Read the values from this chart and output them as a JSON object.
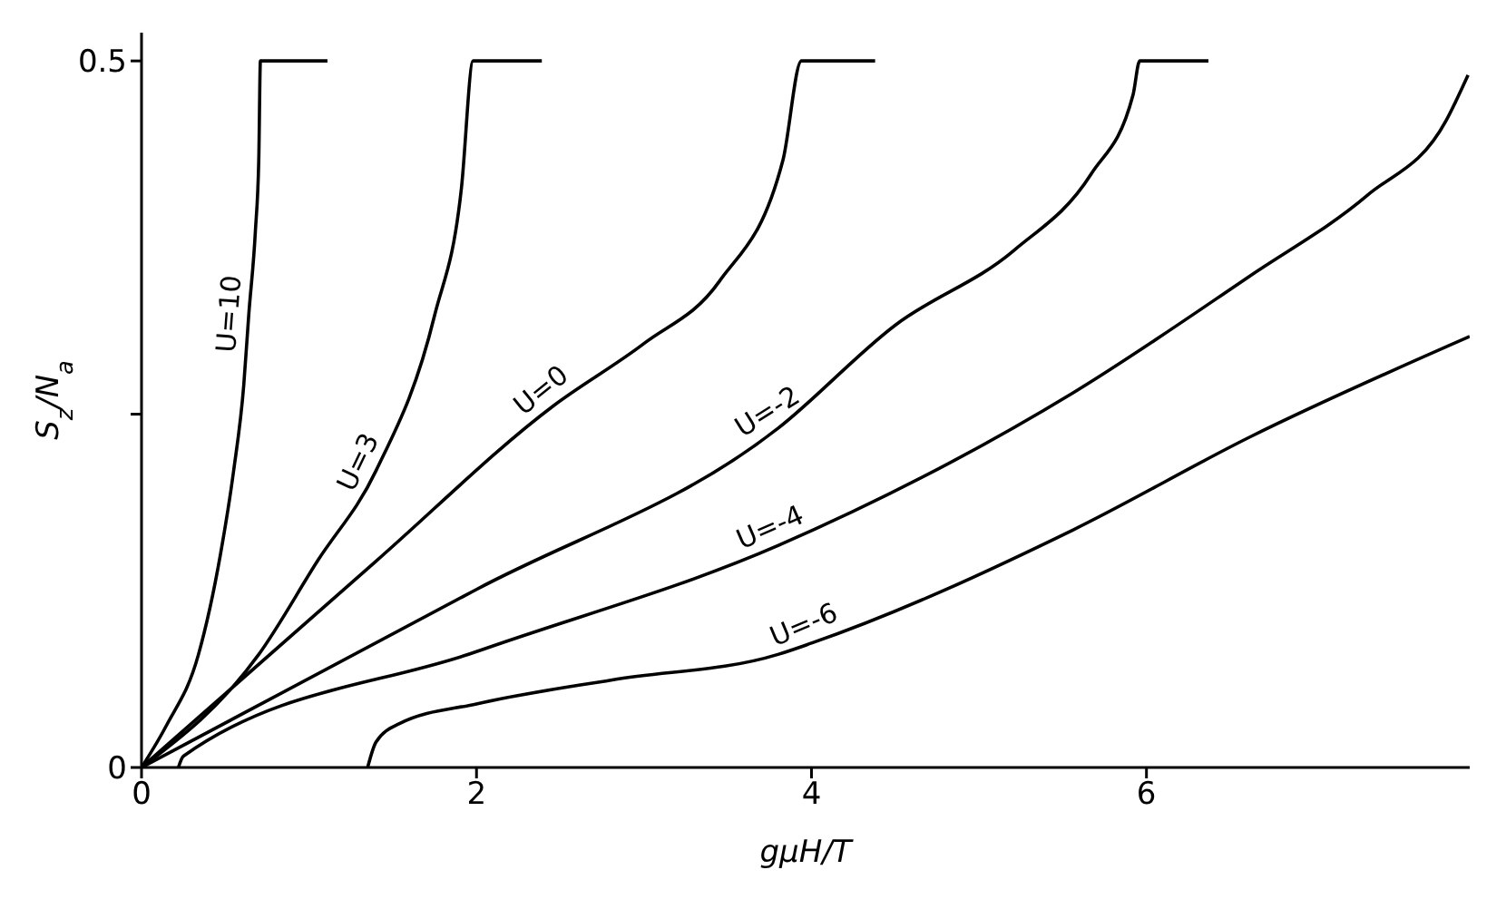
{
  "chart_data": {
    "type": "line",
    "xlabel": "gμH/T",
    "ylabel": "S$_{z}$/N$_{a}$",
    "xlim": [
      0,
      7.93
    ],
    "xticks": [
      0,
      2,
      4,
      6
    ],
    "ylim": [
      0,
      0.52
    ],
    "yticks": [
      0,
      {
        "value": 0.25,
        "label": null
      },
      0.5
    ],
    "marker": "none",
    "line_style": "solid",
    "series": [
      {
        "name": "U=10",
        "color": "#000000",
        "x": [
          0,
          0.15,
          0.34,
          0.47,
          0.55,
          0.61,
          0.64,
          0.68,
          0.7,
          0.71,
          1.11
        ],
        "values": [
          0,
          0.03,
          0.08,
          0.15,
          0.21,
          0.27,
          0.32,
          0.38,
          0.43,
          0.5,
          0.5
        ]
      },
      {
        "name": "U=3",
        "color": "#000000",
        "x": [
          0,
          0.7,
          1.05,
          1.4,
          1.75,
          1.91,
          1.98,
          2.39
        ],
        "values": [
          0,
          0.08,
          0.146,
          0.21,
          0.32,
          0.41,
          0.5,
          0.5
        ]
      },
      {
        "name": "U=0",
        "color": "#000000",
        "x": [
          0,
          1.4,
          2.46,
          3.0,
          3.45,
          3.83,
          3.94,
          4.38
        ],
        "values": [
          0,
          0.146,
          0.256,
          0.3,
          0.344,
          0.43,
          0.5,
          0.5
        ]
      },
      {
        "name": "U=-2",
        "color": "#000000",
        "x": [
          0,
          2,
          3.8,
          4.5,
          5.21,
          5.67,
          5.92,
          5.96,
          6.37
        ],
        "values": [
          0,
          0.126,
          0.24,
          0.313,
          0.366,
          0.42,
          0.476,
          0.5,
          0.5
        ]
      },
      {
        "name": "U=-4",
        "color": "#000000",
        "x": [
          0.22,
          0.25,
          2,
          3.8,
          5.56,
          6.62,
          7.32,
          7.79,
          7.92
        ],
        "values": [
          0,
          0.008,
          0.082,
          0.157,
          0.265,
          0.348,
          0.405,
          0.458,
          0.49
        ]
      },
      {
        "name": "U=-6",
        "color": "#000000",
        "x": [
          1.35,
          1.4,
          1.54,
          2.0,
          2.81,
          3.8,
          4.0,
          5.56,
          6.62,
          7.93
        ],
        "values": [
          0,
          0.018,
          0.031,
          0.045,
          0.062,
          0.08,
          0.088,
          0.168,
          0.234,
          0.305
        ]
      }
    ]
  }
}
